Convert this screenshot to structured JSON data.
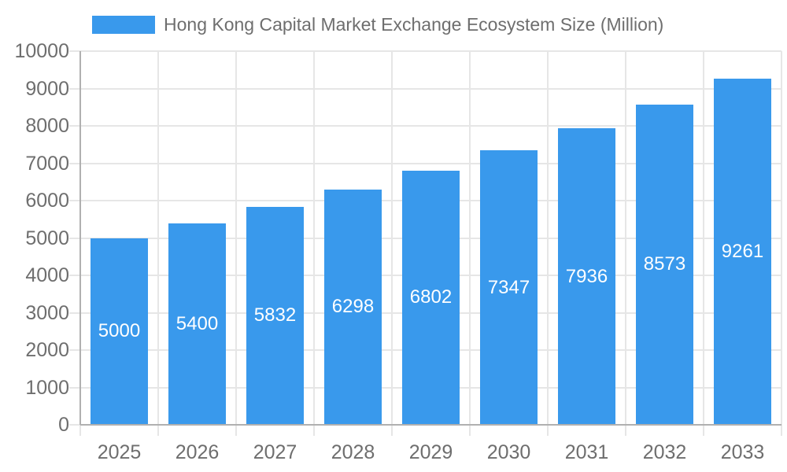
{
  "chart_data": {
    "type": "bar",
    "title": "Hong Kong Capital Market Exchange Ecosystem Size (Million)",
    "legend": [
      "Hong Kong Capital Market Exchange Ecosystem Size (Million)"
    ],
    "legend_position": "top",
    "categories": [
      "2025",
      "2026",
      "2027",
      "2028",
      "2029",
      "2030",
      "2031",
      "2032",
      "2033"
    ],
    "values": [
      5000,
      5400,
      5832,
      6298,
      6802,
      7347,
      7936,
      8573,
      9261
    ],
    "xlabel": "",
    "ylabel": "",
    "ylim": [
      0,
      10000
    ],
    "ytick_step": 1000,
    "yticks": [
      0,
      1000,
      2000,
      3000,
      4000,
      5000,
      6000,
      7000,
      8000,
      9000,
      10000
    ],
    "grid": true,
    "value_labels_inside_bars": true,
    "colors": {
      "bar": "#3999EC",
      "grid": "#e6e6e6",
      "axis": "#b0b0b0",
      "text": "#6e6e6e",
      "value_label": "#ffffff",
      "background": "#ffffff"
    }
  }
}
